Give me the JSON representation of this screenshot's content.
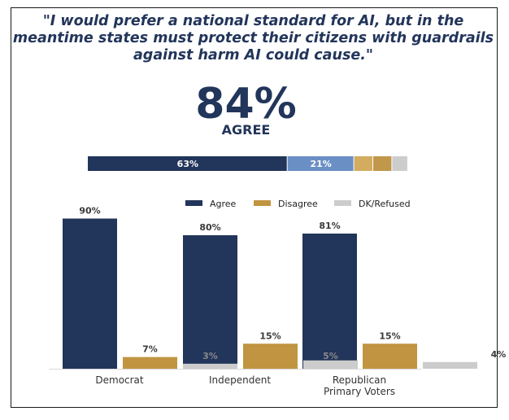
{
  "quote": "\"I would prefer a national standard for AI, but in the meantime states must protect their citizens with guardrails against harm AI could cause.\"",
  "headline": {
    "value": "84%",
    "label": "AGREE"
  },
  "colors": {
    "text": "#22355a",
    "strongly_agree": "#22355a",
    "somewhat_agree": "#6a8fc4",
    "somewhat_disagree": "#d3ac60",
    "strongly_disagree": "#c1974a",
    "dk": "#cccccc",
    "agree": "#22355a",
    "disagree": "#c09440",
    "dk_refused": "#cccccc"
  },
  "stacked_bar": {
    "segments": [
      {
        "value": 63,
        "label": "63%",
        "color_key": "strongly_agree"
      },
      {
        "value": 21,
        "label": "21%",
        "color_key": "somewhat_agree"
      },
      {
        "value": 6,
        "label": "",
        "color_key": "somewhat_disagree"
      },
      {
        "value": 6,
        "label": "",
        "color_key": "strongly_disagree"
      },
      {
        "value": 5,
        "label": "",
        "color_key": "dk"
      }
    ]
  },
  "chart_data": {
    "type": "bar",
    "categories": [
      "Democrat",
      "Independent",
      "Republican Primary Voters"
    ],
    "series": [
      {
        "name": "Agree",
        "values": [
          90,
          80,
          81
        ],
        "labels": [
          "90%",
          "80%",
          "81%"
        ]
      },
      {
        "name": "Disagree",
        "values": [
          7,
          15,
          15
        ],
        "labels": [
          "7%",
          "15%",
          "15%"
        ]
      },
      {
        "name": "DK/Refused",
        "values": [
          3,
          5,
          4
        ],
        "labels": [
          "3%",
          "5%",
          "4%"
        ]
      }
    ],
    "legend": [
      "Agree",
      "Disagree",
      "DK/Refused"
    ],
    "legend_position": "top-right",
    "ylim": [
      0,
      100
    ],
    "grid": false
  }
}
